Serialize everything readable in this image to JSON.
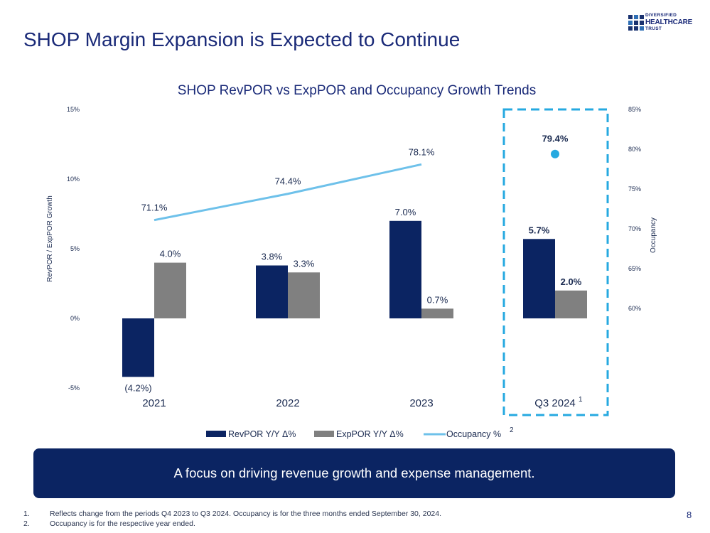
{
  "header": {
    "title": "SHOP Margin Expansion is Expected to Continue"
  },
  "logo": {
    "line1": "DIVERSIFIED",
    "line2": "HEALTHCARE",
    "line3": "TRUST"
  },
  "chart_data": {
    "type": "bar",
    "title": "SHOP RevPOR vs ExpPOR and Occupancy Growth Trends",
    "categories": [
      "2021",
      "2022",
      "2023",
      "Q3 2024"
    ],
    "category_superscripts": [
      "",
      "",
      "",
      "1"
    ],
    "series": [
      {
        "name": "RevPOR Y/Y Δ%",
        "type": "bar",
        "color": "#0b2462",
        "values": [
          -4.2,
          3.8,
          7.0,
          5.7
        ],
        "labels": [
          "(4.2%)",
          "3.8%",
          "7.0%",
          "5.7%"
        ]
      },
      {
        "name": "ExpPOR Y/Y Δ%",
        "type": "bar",
        "color": "#808080",
        "values": [
          4.0,
          3.3,
          0.7,
          2.0
        ],
        "labels": [
          "4.0%",
          "3.3%",
          "0.7%",
          "2.0%"
        ]
      },
      {
        "name": "Occupancy %",
        "type": "line",
        "axis": "right",
        "color": "#6ec1ea",
        "values": [
          71.1,
          74.4,
          78.1,
          79.4
        ],
        "labels": [
          "71.1%",
          "74.4%",
          "78.1%",
          "79.4%"
        ]
      }
    ],
    "legend_superscripts": [
      "",
      "",
      "2"
    ],
    "left_axis": {
      "label": "RevPOR / ExpPOR Growth",
      "min": -5,
      "max": 15,
      "ticks": [
        15,
        10,
        5,
        0,
        -5
      ],
      "tick_labels": [
        "15%",
        "10%",
        "5%",
        "0%",
        "-5%"
      ]
    },
    "right_axis": {
      "label": "Occupancy",
      "min": 60,
      "max": 85,
      "ticks": [
        85,
        80,
        75,
        70,
        65,
        60
      ],
      "tick_labels": [
        "85%",
        "80%",
        "75%",
        "70%",
        "65%",
        "60%"
      ]
    },
    "highlight_category": "Q3 2024",
    "legend_position": "bottom"
  },
  "banner": {
    "text": "A focus on driving revenue growth and expense management."
  },
  "footnotes": [
    {
      "num": "1.",
      "text": "Reflects change from the periods Q4 2023 to Q3 2024. Occupancy is for the three months ended September 30, 2024."
    },
    {
      "num": "2.",
      "text": "Occupancy is for the respective year ended."
    }
  ],
  "page_number": "8"
}
